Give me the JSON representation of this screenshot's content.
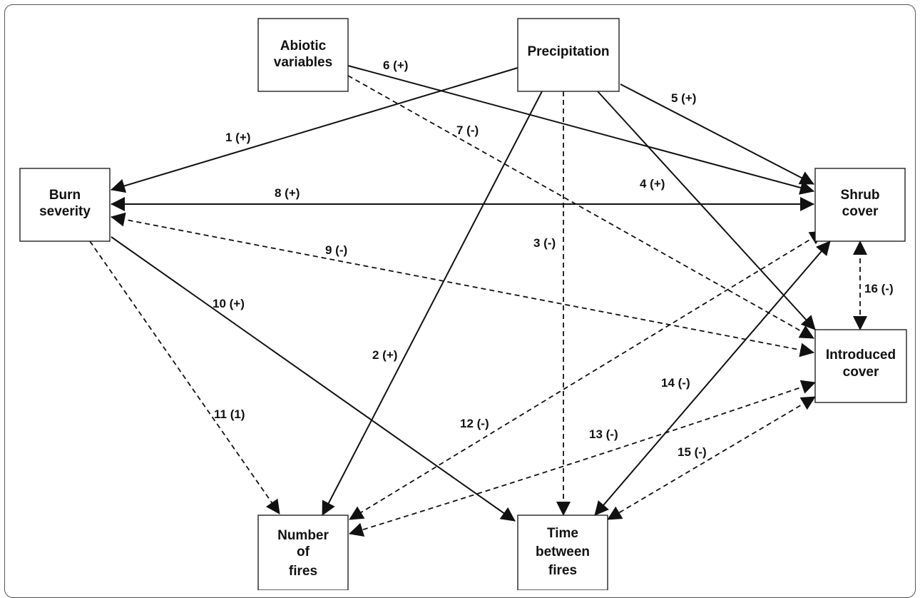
{
  "nodes": {
    "abiotic": [
      "Abiotic",
      "variables"
    ],
    "precipitation": [
      "Precipitation"
    ],
    "burn": [
      "Burn",
      "severity"
    ],
    "shrub": [
      "Shrub",
      "cover"
    ],
    "introduced": [
      "Introduced",
      "cover"
    ],
    "number": [
      "Number",
      "of",
      "fires"
    ],
    "time": [
      "Time",
      "between",
      "fires"
    ]
  },
  "edges": [
    {
      "label": "1 (+)",
      "from": "precipitation",
      "to": "burn-severity",
      "style": "solid",
      "dir": "one-way"
    },
    {
      "label": "2 (+)",
      "from": "precipitation",
      "to": "number-of-fires",
      "style": "solid",
      "dir": "one-way"
    },
    {
      "label": "3 (-)",
      "from": "precipitation",
      "to": "time-between-fires",
      "style": "dashed",
      "dir": "one-way"
    },
    {
      "label": "4 (+)",
      "from": "precipitation",
      "to": "introduced-cover",
      "style": "solid",
      "dir": "one-way"
    },
    {
      "label": "5 (+)",
      "from": "precipitation",
      "to": "shrub-cover",
      "style": "solid",
      "dir": "one-way"
    },
    {
      "label": "6 (+)",
      "from": "abiotic-variables",
      "to": "shrub-cover",
      "style": "solid",
      "dir": "one-way"
    },
    {
      "label": "7 (-)",
      "from": "abiotic-variables",
      "to": "introduced-cover",
      "style": "dashed",
      "dir": "one-way"
    },
    {
      "label": "8 (+)",
      "from": "burn-severity",
      "to": "shrub-cover",
      "style": "solid",
      "dir": "two-way"
    },
    {
      "label": "9 (-)",
      "from": "burn-severity",
      "to": "introduced-cover",
      "style": "dashed",
      "dir": "two-way"
    },
    {
      "label": "10 (+)",
      "from": "burn-severity",
      "to": "time-between-fires",
      "style": "solid",
      "dir": "one-way"
    },
    {
      "label": "11 (1)",
      "from": "burn-severity",
      "to": "number-of-fires",
      "style": "dashed",
      "dir": "one-way"
    },
    {
      "label": "12 (-)",
      "from": "shrub-cover",
      "to": "number-of-fires",
      "style": "dashed",
      "dir": "two-way"
    },
    {
      "label": "13 (-)",
      "from": "introduced-cover",
      "to": "number-of-fires",
      "style": "dashed",
      "dir": "two-way"
    },
    {
      "label": "14 (-)",
      "from": "shrub-cover",
      "to": "time-between-fires",
      "style": "solid",
      "dir": "two-way"
    },
    {
      "label": "15 (-)",
      "from": "introduced-cover",
      "to": "time-between-fires",
      "style": "dashed",
      "dir": "two-way"
    },
    {
      "label": "16 (-)",
      "from": "shrub-cover",
      "to": "introduced-cover",
      "style": "dashed",
      "dir": "two-way"
    }
  ],
  "labels": {
    "e1": "1 (+)",
    "e2": "2 (+)",
    "e3": "3 (-)",
    "e4": "4 (+)",
    "e5": "5 (+)",
    "e6": "6 (+)",
    "e7": "7 (-)",
    "e8": "8 (+)",
    "e9": "9 (-)",
    "e10": "10 (+)",
    "e11": "11 (1)",
    "e12": "12 (-)",
    "e13": "13 (-)",
    "e14": "14 (-)",
    "e15": "15 (-)",
    "e16": "16 (-)"
  }
}
